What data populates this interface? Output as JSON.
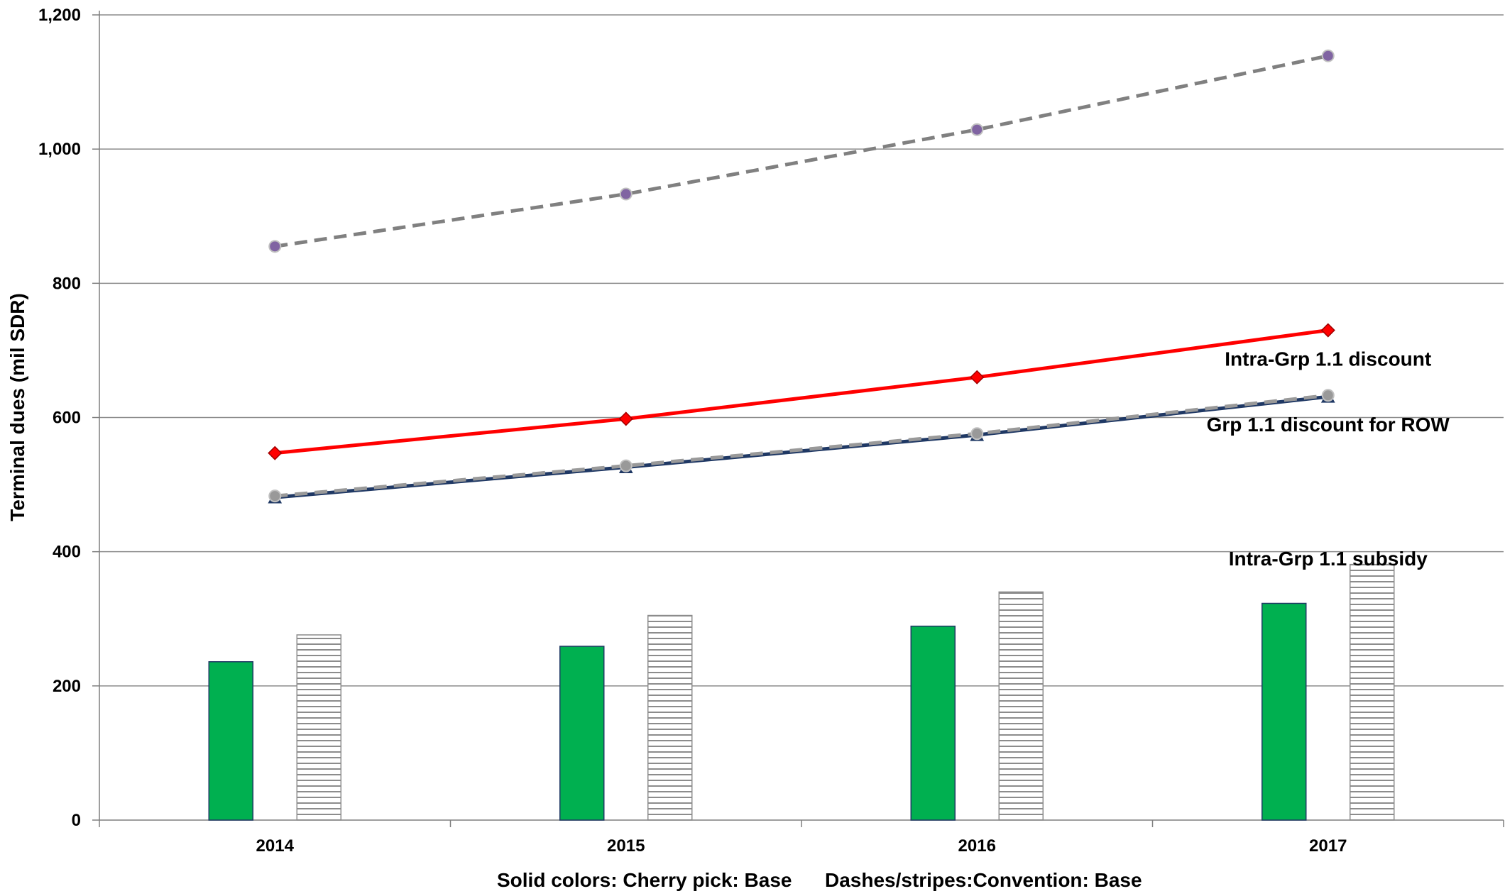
{
  "chart_data": {
    "type": "bar",
    "title": "",
    "xlabel": "",
    "ylabel": "Terminal dues (mil SDR)",
    "caption_left": "Solid colors: Cherry pick: Base",
    "caption_right": "Dashes/stripes:Convention: Base",
    "ylim": [
      0,
      1200
    ],
    "yticks": [
      0,
      200,
      400,
      600,
      800,
      1000,
      1200
    ],
    "ytick_labels": [
      "0",
      "200",
      "400",
      "600",
      "800",
      "1,000",
      "1,200"
    ],
    "categories": [
      "2014",
      "2015",
      "2016",
      "2017"
    ],
    "grid": true,
    "bar_series": [
      {
        "style": "solid",
        "color": "#00b050",
        "values": [
          236,
          259,
          289,
          323
        ]
      },
      {
        "style": "stripes",
        "color": "#7f7f7f",
        "values": [
          276,
          305,
          340,
          381
        ]
      }
    ],
    "line_series": [
      {
        "style": "dashed",
        "color": "#808080",
        "marker": "circle",
        "marker_color": "#8064a2",
        "values": [
          855,
          933,
          1029,
          1139
        ]
      },
      {
        "style": "solid",
        "color": "#ff0000",
        "marker": "diamond",
        "marker_color": "#ff0000",
        "values": [
          547,
          598,
          660,
          730
        ]
      },
      {
        "style": "solid",
        "color": "#1f3864",
        "marker": "triangle",
        "marker_color": "#1f3864",
        "values": [
          481,
          526,
          574,
          631
        ]
      },
      {
        "style": "dashed",
        "color": "#999999",
        "marker": "circle",
        "marker_color": "#999999",
        "values": [
          483,
          528,
          576,
          633
        ]
      }
    ],
    "annotations": [
      {
        "text": "Intra-Grp 1.1 discount",
        "x": "2017",
        "y": 688
      },
      {
        "text": "Grp 1.1 discount for ROW",
        "x": "2017",
        "y": 590
      },
      {
        "text": "Intra-Grp 1.1 subsidy",
        "x": "2017",
        "y": 390
      }
    ]
  }
}
